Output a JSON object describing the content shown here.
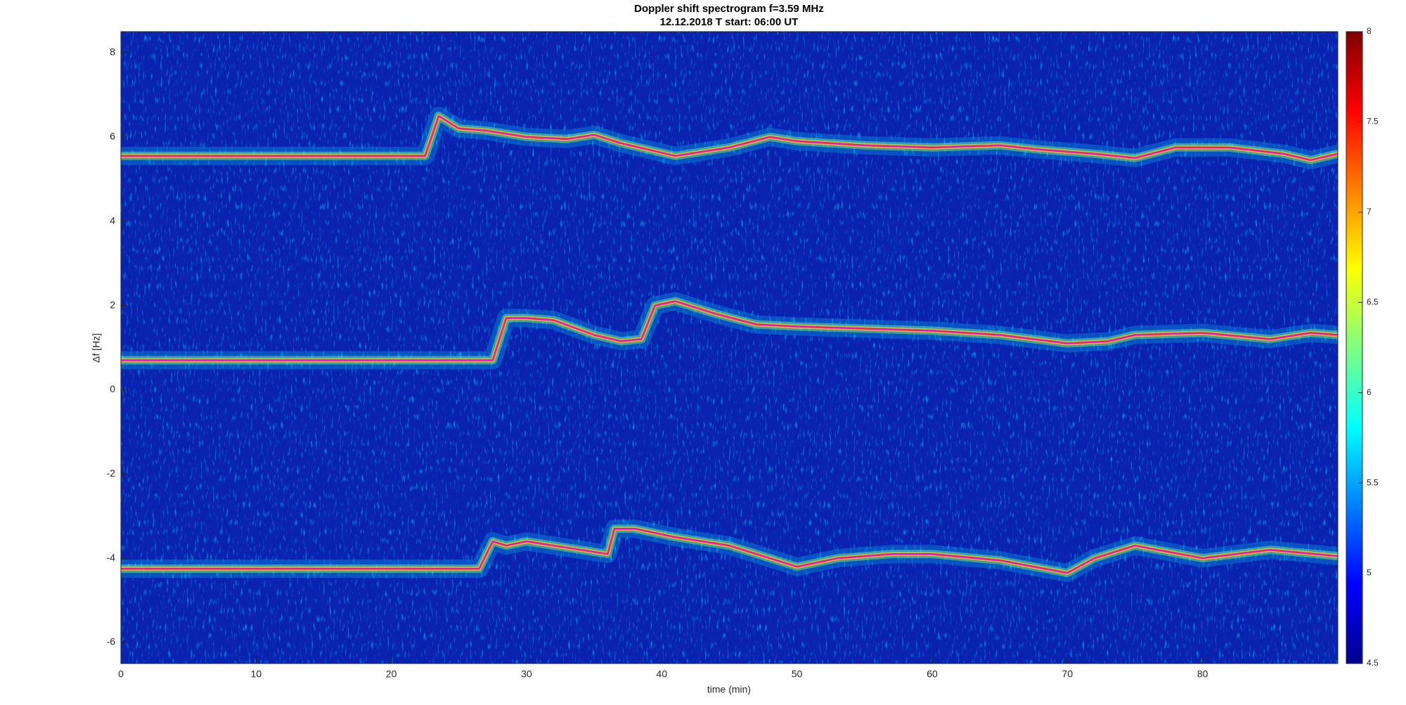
{
  "chart_data": {
    "type": "spectrogram",
    "title": "Doppler shift spectrogram f=3.59 MHz",
    "subtitle": "12.12.2018   T start: 06:00 UT",
    "xlabel": "time (min)",
    "ylabel": "Δf [Hz]",
    "xlim": [
      0,
      90
    ],
    "xticks": [
      0,
      10,
      20,
      30,
      40,
      50,
      60,
      70,
      80
    ],
    "ylim": [
      -6.5,
      8.5
    ],
    "yticks": [
      -6,
      -4,
      -2,
      0,
      2,
      4,
      6,
      8
    ],
    "colorbar": {
      "lim": [
        4.5,
        8
      ],
      "ticks": [
        4.5,
        5,
        5.5,
        6,
        6.5,
        7,
        7.5,
        8
      ]
    },
    "series": [
      {
        "color": "#ff00ff",
        "x": [
          0,
          22.5,
          23.5,
          24,
          25,
          27,
          30,
          33,
          35,
          37,
          39,
          41,
          43,
          45,
          48,
          50,
          55,
          60,
          65,
          68,
          72,
          75,
          78,
          82,
          86,
          88,
          90
        ],
        "values": [
          5.55,
          5.55,
          6.5,
          6.4,
          6.2,
          6.15,
          6.0,
          5.95,
          6.05,
          5.85,
          5.7,
          5.55,
          5.65,
          5.75,
          6.0,
          5.9,
          5.8,
          5.75,
          5.8,
          5.7,
          5.6,
          5.5,
          5.75,
          5.75,
          5.6,
          5.45,
          5.6
        ]
      },
      {
        "color": "#ff00ff",
        "x": [
          0,
          27.5,
          28.5,
          30,
          32,
          35,
          37,
          38.5,
          39.5,
          41,
          44,
          47,
          50,
          55,
          60,
          65,
          70,
          73,
          75,
          80,
          85,
          88,
          90
        ],
        "values": [
          0.7,
          0.7,
          1.7,
          1.7,
          1.65,
          1.3,
          1.15,
          1.2,
          2.0,
          2.1,
          1.8,
          1.55,
          1.5,
          1.45,
          1.4,
          1.3,
          1.1,
          1.15,
          1.3,
          1.35,
          1.2,
          1.35,
          1.3
        ]
      },
      {
        "color": "#ff00ff",
        "x": [
          0,
          26.5,
          27.5,
          28.5,
          30,
          33,
          36,
          36.5,
          38,
          41,
          45,
          50,
          53,
          57,
          60,
          65,
          70,
          72,
          75,
          80,
          85,
          90
        ],
        "values": [
          -4.25,
          -4.25,
          -3.6,
          -3.7,
          -3.6,
          -3.75,
          -3.9,
          -3.3,
          -3.3,
          -3.5,
          -3.7,
          -4.2,
          -4.0,
          -3.9,
          -3.9,
          -4.05,
          -4.35,
          -4.0,
          -3.7,
          -4.0,
          -3.8,
          -3.95
        ]
      }
    ]
  }
}
